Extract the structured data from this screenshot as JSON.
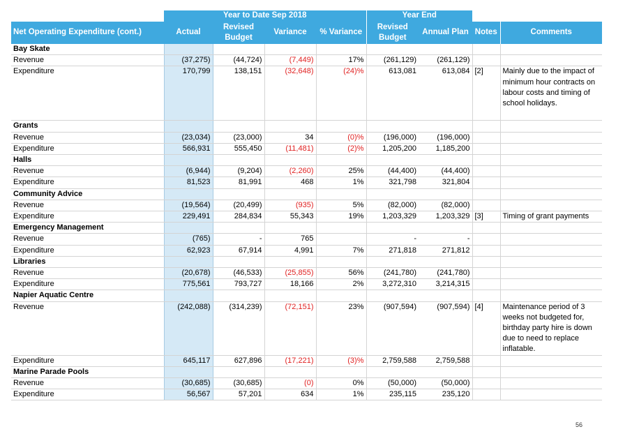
{
  "header": {
    "ytd_group": "Year to Date Sep 2018",
    "ye_group": "Year End",
    "columns": [
      "Net Operating Expenditure (cont.)",
      "Actual",
      "Revised Budget",
      "Variance",
      "% Variance",
      "Revised Budget",
      "Annual Plan",
      "Notes",
      "Comments"
    ]
  },
  "sections": [
    {
      "name": "Bay Skate",
      "rows": [
        {
          "label": "Revenue",
          "actual": "(37,275)",
          "revised_budget": "(44,724)",
          "variance": "(7,449)",
          "pct": "17%",
          "ye_revised": "(261,129)",
          "annual_plan": "(261,129)",
          "notes": "",
          "comments": ""
        },
        {
          "label": "Expenditure",
          "actual": "170,799",
          "revised_budget": "138,151",
          "variance": "(32,648)",
          "pct": "(24)%",
          "ye_revised": "613,081",
          "annual_plan": "613,084",
          "notes": "[2]",
          "comments": "Mainly due to the impact of minimum hour contracts on labour costs and timing of school holidays."
        }
      ]
    },
    {
      "name": "Grants",
      "rows": [
        {
          "label": "Revenue",
          "actual": "(23,034)",
          "revised_budget": "(23,000)",
          "variance": "34",
          "pct": "(0)%",
          "ye_revised": "(196,000)",
          "annual_plan": "(196,000)",
          "notes": "",
          "comments": ""
        },
        {
          "label": "Expenditure",
          "actual": "566,931",
          "revised_budget": "555,450",
          "variance": "(11,481)",
          "pct": "(2)%",
          "ye_revised": "1,205,200",
          "annual_plan": "1,185,200",
          "notes": "",
          "comments": ""
        }
      ]
    },
    {
      "name": "Halls",
      "rows": [
        {
          "label": "Revenue",
          "actual": "(6,944)",
          "revised_budget": "(9,204)",
          "variance": "(2,260)",
          "pct": "25%",
          "ye_revised": "(44,400)",
          "annual_plan": "(44,400)",
          "notes": "",
          "comments": ""
        },
        {
          "label": "Expenditure",
          "actual": "81,523",
          "revised_budget": "81,991",
          "variance": "468",
          "pct": "1%",
          "ye_revised": "321,798",
          "annual_plan": "321,804",
          "notes": "",
          "comments": ""
        }
      ]
    },
    {
      "name": "Community Advice",
      "rows": [
        {
          "label": "Revenue",
          "actual": "(19,564)",
          "revised_budget": "(20,499)",
          "variance": "(935)",
          "pct": "5%",
          "ye_revised": "(82,000)",
          "annual_plan": "(82,000)",
          "notes": "",
          "comments": ""
        },
        {
          "label": "Expenditure",
          "actual": "229,491",
          "revised_budget": "284,834",
          "variance": "55,343",
          "pct": "19%",
          "ye_revised": "1,203,329",
          "annual_plan": "1,203,329",
          "notes": "[3]",
          "comments": "Timing of grant payments"
        }
      ]
    },
    {
      "name": "Emergency Management",
      "rows": [
        {
          "label": "Revenue",
          "actual": "(765)",
          "revised_budget": "-",
          "variance": "765",
          "pct": "",
          "ye_revised": "-",
          "annual_plan": "-",
          "notes": "",
          "comments": ""
        },
        {
          "label": "Expenditure",
          "actual": "62,923",
          "revised_budget": "67,914",
          "variance": "4,991",
          "pct": "7%",
          "ye_revised": "271,818",
          "annual_plan": "271,812",
          "notes": "",
          "comments": ""
        }
      ]
    },
    {
      "name": "Libraries",
      "rows": [
        {
          "label": "Revenue",
          "actual": "(20,678)",
          "revised_budget": "(46,533)",
          "variance": "(25,855)",
          "pct": "56%",
          "ye_revised": "(241,780)",
          "annual_plan": "(241,780)",
          "notes": "",
          "comments": ""
        },
        {
          "label": "Expenditure",
          "actual": "775,561",
          "revised_budget": "793,727",
          "variance": "18,166",
          "pct": "2%",
          "ye_revised": "3,272,310",
          "annual_plan": "3,214,315",
          "notes": "",
          "comments": ""
        }
      ]
    },
    {
      "name": "Napier Aquatic Centre",
      "rows": [
        {
          "label": "Revenue",
          "actual": "(242,088)",
          "revised_budget": "(314,239)",
          "variance": "(72,151)",
          "pct": "23%",
          "ye_revised": "(907,594)",
          "annual_plan": "(907,594)",
          "notes": "[4]",
          "comments": "Maintenance period of 3 weeks not budgeted for, birthday party hire is down due to need to replace inflatable."
        },
        {
          "label": "Expenditure",
          "actual": "645,117",
          "revised_budget": "627,896",
          "variance": "(17,221)",
          "pct": "(3)%",
          "ye_revised": "2,759,588",
          "annual_plan": "2,759,588",
          "notes": "",
          "comments": ""
        }
      ]
    },
    {
      "name": "Marine Parade Pools",
      "rows": [
        {
          "label": "Revenue",
          "actual": "(30,685)",
          "revised_budget": "(30,685)",
          "variance": "(0)",
          "pct": "0%",
          "ye_revised": "(50,000)",
          "annual_plan": "(50,000)",
          "notes": "",
          "comments": ""
        },
        {
          "label": "Expenditure",
          "actual": "56,567",
          "revised_budget": "57,201",
          "variance": "634",
          "pct": "1%",
          "ye_revised": "235,115",
          "annual_plan": "235,120",
          "notes": "",
          "comments": ""
        }
      ]
    }
  ],
  "page_number": "56",
  "colors": {
    "header_blue": "#3fa9df",
    "actual_shade": "#d5e9f6",
    "negative_red": "#e02020"
  }
}
